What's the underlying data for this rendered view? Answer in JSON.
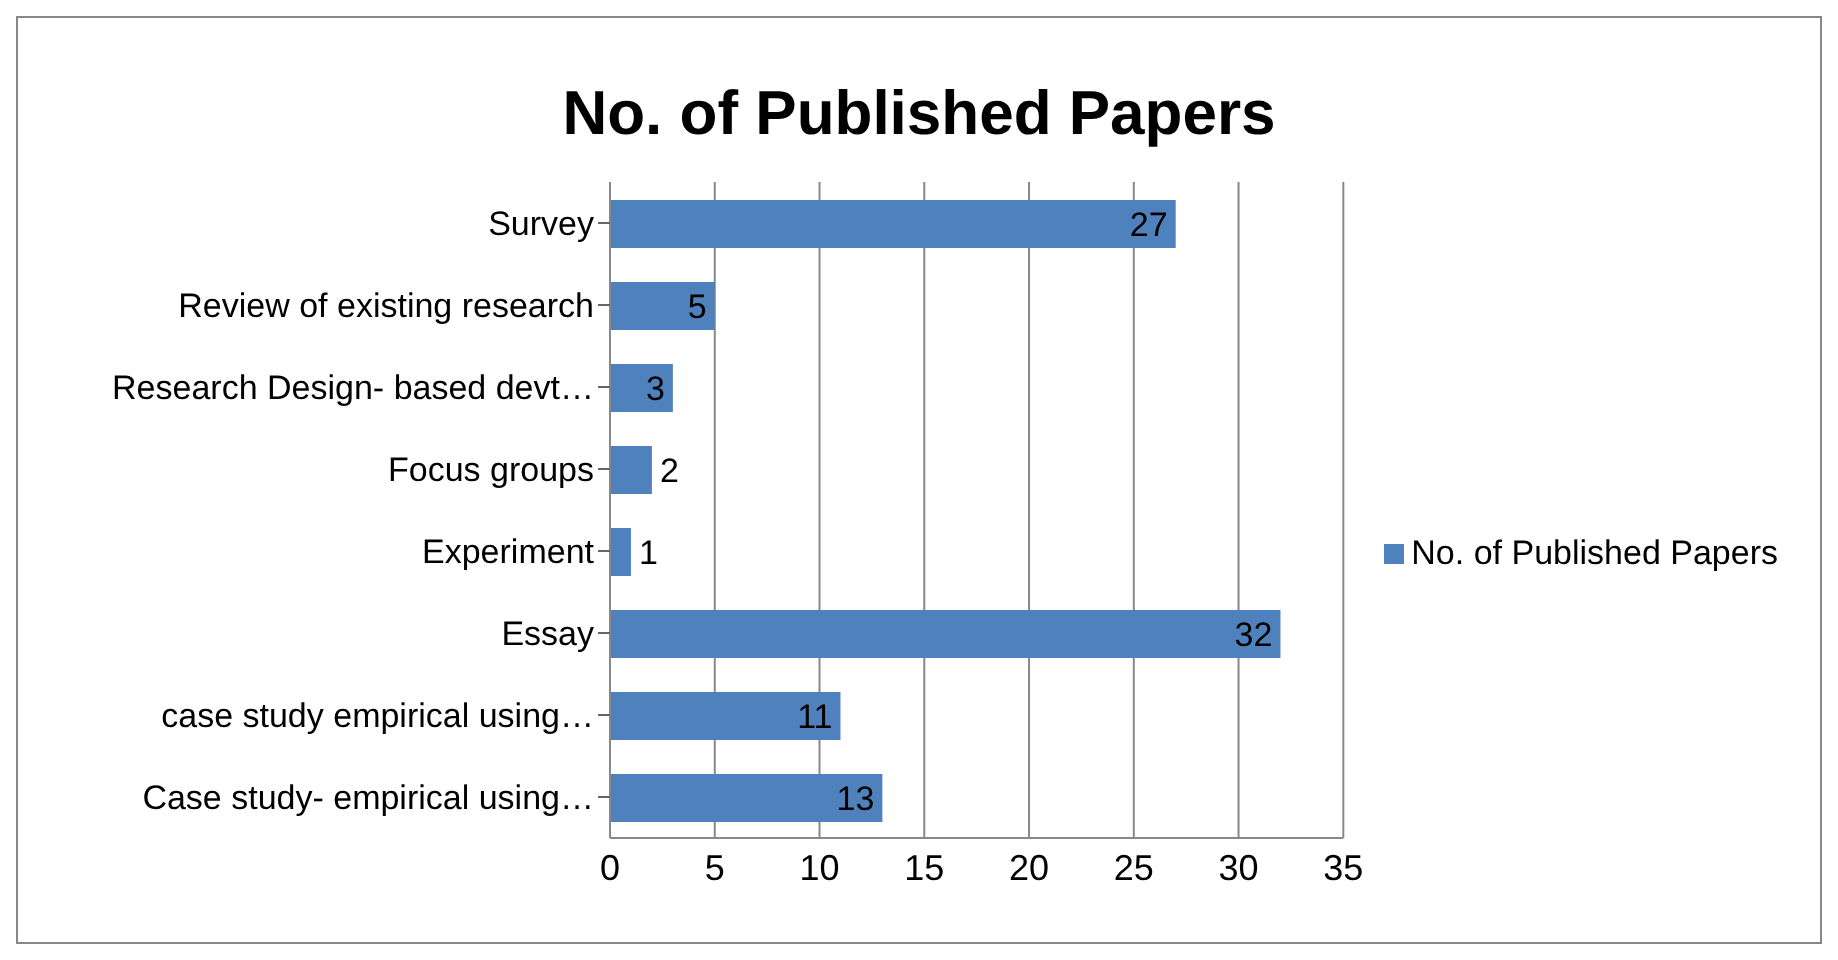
{
  "chart_data": {
    "type": "bar",
    "orientation": "horizontal",
    "title": "No. of Published Papers",
    "categories": [
      "Survey",
      "Review of existing research",
      "Research Design- based devt…",
      "Focus groups",
      "Experiment",
      "Essay",
      "case study empirical using…",
      "Case study- empirical using…"
    ],
    "series": [
      {
        "name": "No. of Published Papers",
        "color": "#4f81bd",
        "values": [
          27,
          5,
          3,
          2,
          1,
          32,
          11,
          13
        ]
      }
    ],
    "xlim": [
      0,
      35
    ],
    "xticks": [
      0,
      5,
      10,
      15,
      20,
      25,
      30,
      35
    ],
    "grid": "x",
    "legend": "right",
    "data_labels": true
  }
}
